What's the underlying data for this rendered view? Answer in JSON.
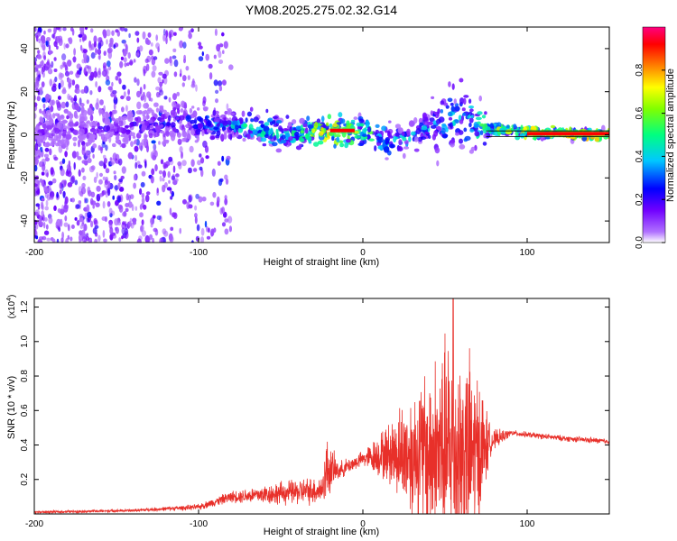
{
  "title": "YM08.2025.275.02.32.G14",
  "chart_data": [
    {
      "type": "heatmap",
      "name": "spectrogram",
      "xlabel": "Height of straight line (km)",
      "ylabel": "Frequency (Hz)",
      "xlim": [
        -200,
        150
      ],
      "ylim": [
        -50,
        50
      ],
      "xticks": [
        -200,
        -100,
        0,
        100
      ],
      "yticks": [
        -40,
        -20,
        0,
        20,
        40
      ],
      "colorbar": {
        "label": "Normalized spectral amplitude",
        "range": [
          0,
          1
        ],
        "ticks": [
          0.0,
          0.2,
          0.4,
          0.6,
          0.8
        ],
        "tick_labels": [
          "0.0",
          "0.2",
          "0.4",
          "0.6",
          "0.8"
        ],
        "colors": [
          "#ffffff",
          "#8a00ff",
          "#0000ff",
          "#00ffff",
          "#00ff00",
          "#ffff00",
          "#ff8000",
          "#ff0000",
          "#ff0080"
        ]
      },
      "ridge": [
        {
          "x": -200,
          "f": 2,
          "amp": 0.15
        },
        {
          "x": -150,
          "f": 3,
          "amp": 0.2
        },
        {
          "x": -110,
          "f": 6,
          "amp": 0.3
        },
        {
          "x": -80,
          "f": 5,
          "amp": 0.45
        },
        {
          "x": -60,
          "f": 2,
          "amp": 0.55
        },
        {
          "x": -40,
          "f": 0,
          "amp": 0.5
        },
        {
          "x": -20,
          "f": 2,
          "amp": 0.85
        },
        {
          "x": 0,
          "f": 1,
          "amp": 0.6
        },
        {
          "x": 20,
          "f": -3,
          "amp": 0.45
        },
        {
          "x": 45,
          "f": 5,
          "amp": 0.4
        },
        {
          "x": 60,
          "f": 8,
          "amp": 0.45
        },
        {
          "x": 75,
          "f": 3,
          "amp": 0.6
        },
        {
          "x": 100,
          "f": 1,
          "amp": 0.85
        },
        {
          "x": 150,
          "f": 0,
          "amp": 0.9
        }
      ]
    },
    {
      "type": "line",
      "name": "snr",
      "xlabel": "Height of straight line (km)",
      "ylabel": "SNR (10 * v/v)",
      "y_multiplier_label": "(x10",
      "y_multiplier_exp": "4",
      "y_multiplier_close": ")",
      "xlim": [
        -200,
        150
      ],
      "ylim": [
        0,
        1.25
      ],
      "xticks": [
        -200,
        -100,
        0,
        100
      ],
      "yticks": [
        0.2,
        0.4,
        0.6,
        0.8,
        1.0,
        1.2
      ],
      "color": "#e8302a",
      "envelope": [
        {
          "x": -200,
          "base": 0.01,
          "amp": 0.01
        },
        {
          "x": -140,
          "base": 0.02,
          "amp": 0.01
        },
        {
          "x": -100,
          "base": 0.04,
          "amp": 0.02
        },
        {
          "x": -80,
          "base": 0.1,
          "amp": 0.04
        },
        {
          "x": -50,
          "base": 0.12,
          "amp": 0.08
        },
        {
          "x": -25,
          "base": 0.14,
          "amp": 0.1
        },
        {
          "x": -22,
          "base": 0.26,
          "amp": 0.22
        },
        {
          "x": -15,
          "base": 0.25,
          "amp": 0.06
        },
        {
          "x": 0,
          "base": 0.32,
          "amp": 0.05
        },
        {
          "x": 15,
          "base": 0.35,
          "amp": 0.2
        },
        {
          "x": 30,
          "base": 0.35,
          "amp": 0.45
        },
        {
          "x": 55,
          "base": 0.35,
          "amp": 0.85
        },
        {
          "x": 70,
          "base": 0.35,
          "amp": 0.6
        },
        {
          "x": 78,
          "base": 0.42,
          "amp": 0.08
        },
        {
          "x": 90,
          "base": 0.47,
          "amp": 0.02
        },
        {
          "x": 120,
          "base": 0.44,
          "amp": 0.02
        },
        {
          "x": 150,
          "base": 0.42,
          "amp": 0.02
        }
      ],
      "peak": {
        "x": 55,
        "y": 1.25
      }
    }
  ]
}
